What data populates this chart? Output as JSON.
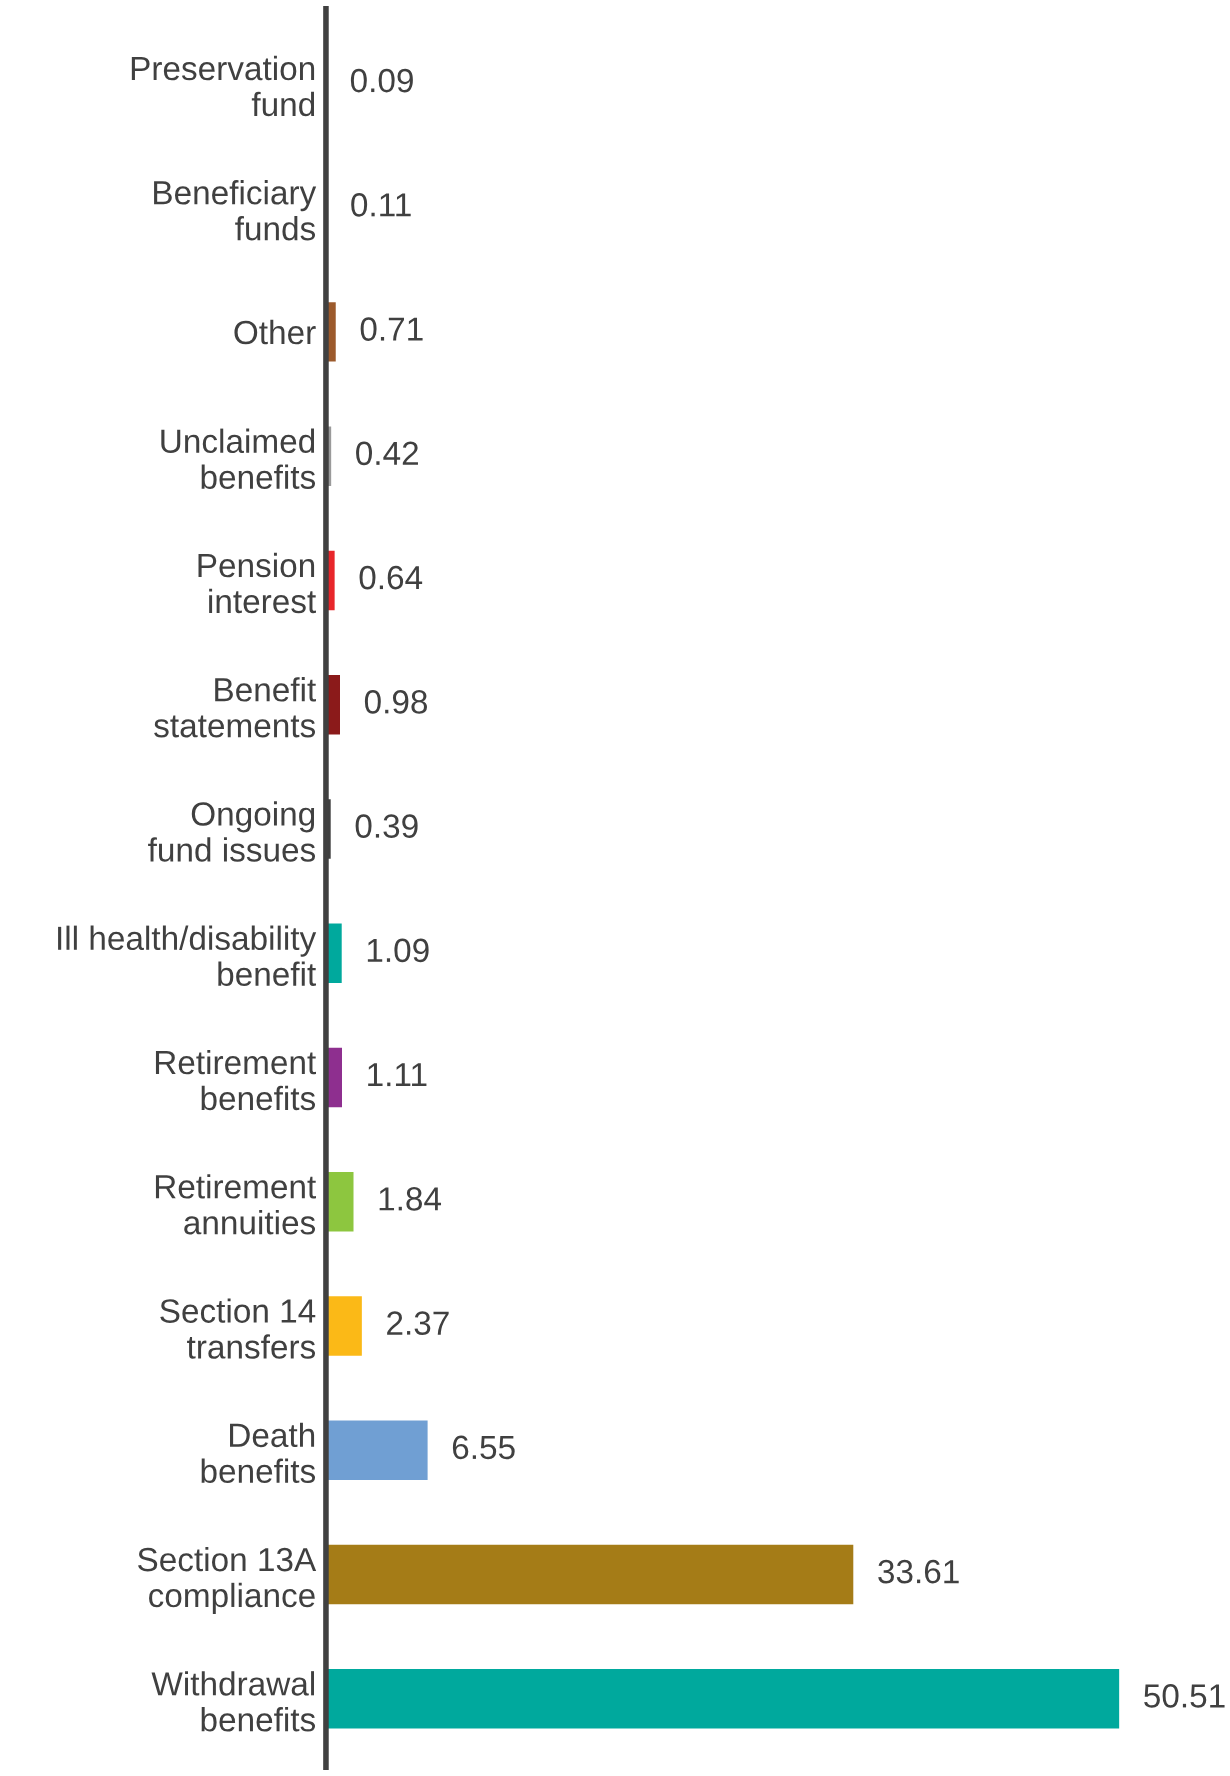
{
  "chart_data": {
    "type": "bar",
    "orientation": "horizontal",
    "data_labels": true,
    "tick_labels": "y",
    "grid": false,
    "legend": false,
    "categories": [
      "Preservation\nfund",
      "Beneficiary\nfunds",
      "Other",
      "Unclaimed\nbenefits",
      "Pension\ninterest",
      "Benefit\nstatements",
      "Ongoing\nfund issues",
      "Ill health/disability\nbenefit",
      "Retirement\nbenefits",
      "Retirement\nannuities",
      "Section 14\ntransfers",
      "Death\nbenefits",
      "Section 13A\ncompliance",
      "Withdrawal\nbenefits"
    ],
    "values": [
      0.09,
      0.11,
      0.71,
      0.42,
      0.64,
      0.98,
      0.39,
      1.09,
      1.11,
      1.84,
      2.37,
      6.55,
      33.61,
      50.51
    ],
    "colors": [
      "#1f5c3a",
      "#111111",
      "#9c5a2c",
      "#9a9a9a",
      "#e8262a",
      "#8b1a1a",
      "#404040",
      "#00a99d",
      "#8e2f8f",
      "#8dc63f",
      "#fbb917",
      "#709fd3",
      "#a57c17",
      "#00a99d"
    ]
  }
}
